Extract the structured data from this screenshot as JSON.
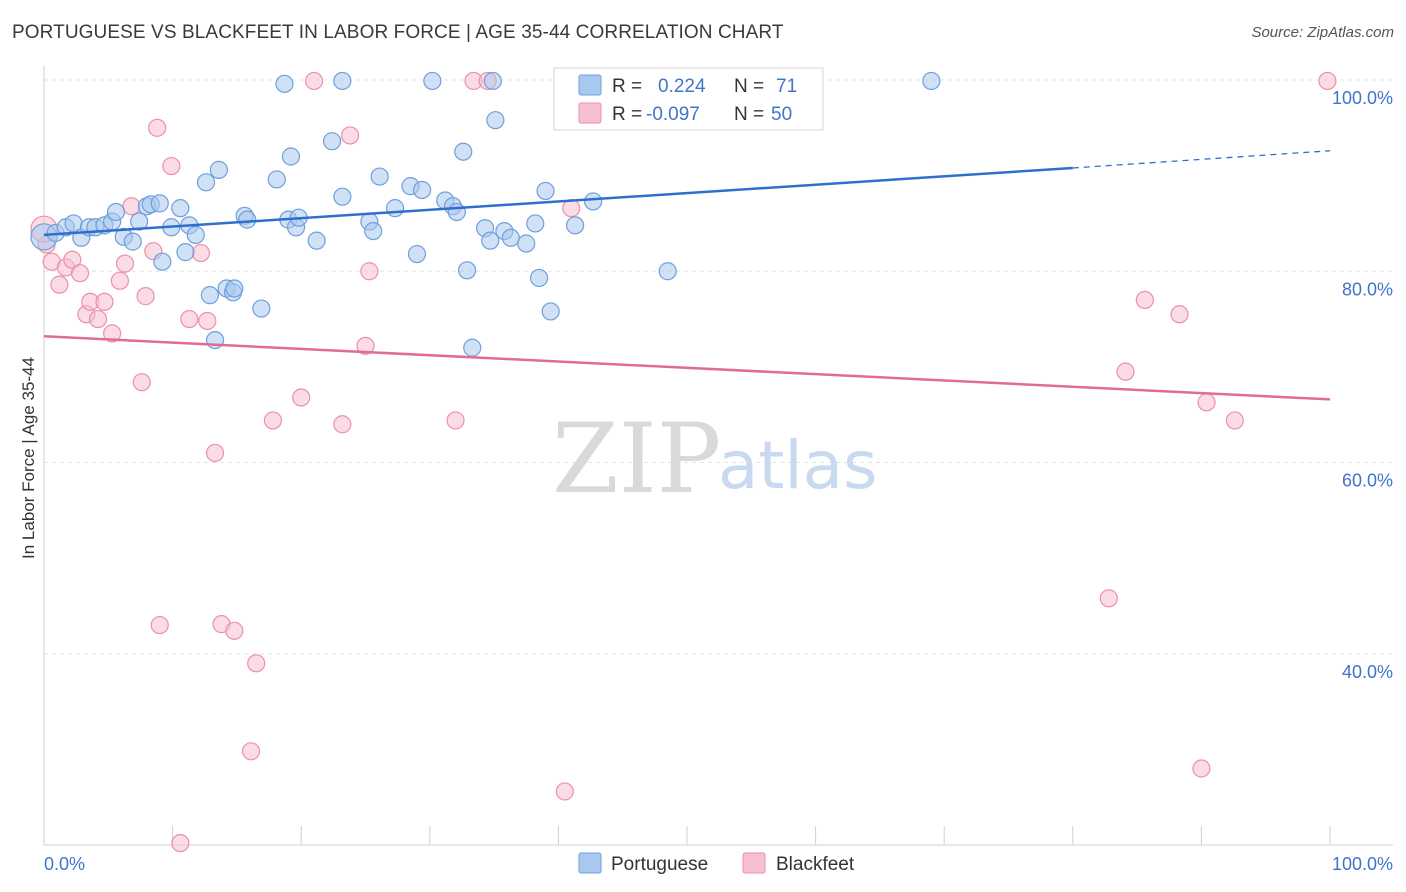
{
  "title": "PORTUGUESE VS BLACKFEET IN LABOR FORCE | AGE 35-44 CORRELATION CHART",
  "source": "Source: ZipAtlas.com",
  "watermark": {
    "zip": "ZIP",
    "atlas": "atlas"
  },
  "colors": {
    "portuguese_fill": "#a9c8ef",
    "portuguese_stroke": "#6f9fdc",
    "portuguese_line": "#2f6fcc",
    "blackfeet_fill": "#f7bfd0",
    "blackfeet_stroke": "#eb8fae",
    "blackfeet_line": "#e06c96",
    "grid": "#e3e3e3",
    "axis_text": "#3f74c9"
  },
  "legend": {
    "row1": {
      "r_label": "R =",
      "r_value": "0.224",
      "n_label": "N =",
      "n_value": "71"
    },
    "row2": {
      "r_label": "R =",
      "r_value": "-0.097",
      "n_label": "N =",
      "n_value": "50"
    }
  },
  "chart_data": {
    "type": "scatter",
    "title": "PORTUGUESE VS BLACKFEET IN LABOR FORCE | AGE 35-44 CORRELATION CHART",
    "xlabel": "",
    "ylabel": "In Labor Force | Age 35-44",
    "xlim": [
      0,
      100
    ],
    "ylim": [
      20,
      100
    ],
    "x_tick_labels": [
      "0.0%",
      "100.0%"
    ],
    "y_ticks": [
      40,
      60,
      80,
      100
    ],
    "y_tick_labels": [
      "40.0%",
      "60.0%",
      "80.0%",
      "100.0%"
    ],
    "grid": true,
    "legend_position": "bottom-center",
    "series": [
      {
        "name": "Portuguese",
        "r": 0.224,
        "n": 71,
        "trend": {
          "x0": 0,
          "y0": 83.8,
          "x1": 80,
          "y1": 90.8,
          "dashed_to_x": 100,
          "dashed_to_y": 92.6
        },
        "points": [
          [
            0.0,
            83.6
          ],
          [
            0.9,
            84.0
          ],
          [
            1.7,
            84.6
          ],
          [
            2.3,
            85.0
          ],
          [
            2.9,
            83.5
          ],
          [
            3.5,
            84.6
          ],
          [
            4.0,
            84.6
          ],
          [
            4.7,
            84.8
          ],
          [
            5.3,
            85.2
          ],
          [
            5.6,
            86.2
          ],
          [
            6.2,
            83.6
          ],
          [
            6.9,
            83.1
          ],
          [
            7.4,
            85.2
          ],
          [
            8.0,
            86.8
          ],
          [
            8.3,
            87.0
          ],
          [
            9.0,
            87.1
          ],
          [
            9.2,
            81.0
          ],
          [
            9.9,
            84.6
          ],
          [
            10.6,
            86.6
          ],
          [
            11.0,
            82.0
          ],
          [
            11.3,
            84.8
          ],
          [
            11.8,
            83.8
          ],
          [
            12.6,
            89.3
          ],
          [
            12.9,
            77.5
          ],
          [
            13.3,
            72.8
          ],
          [
            13.6,
            90.6
          ],
          [
            14.2,
            78.2
          ],
          [
            14.7,
            77.8
          ],
          [
            14.8,
            78.2
          ],
          [
            15.6,
            85.8
          ],
          [
            15.8,
            85.4
          ],
          [
            16.9,
            76.1
          ],
          [
            18.1,
            89.6
          ],
          [
            18.7,
            99.6
          ],
          [
            19.0,
            85.4
          ],
          [
            19.2,
            92.0
          ],
          [
            19.6,
            84.6
          ],
          [
            19.8,
            85.6
          ],
          [
            21.2,
            83.2
          ],
          [
            22.4,
            93.6
          ],
          [
            23.2,
            87.8
          ],
          [
            23.2,
            99.9
          ],
          [
            25.3,
            85.2
          ],
          [
            25.6,
            84.2
          ],
          [
            26.1,
            89.9
          ],
          [
            27.3,
            86.6
          ],
          [
            28.5,
            88.9
          ],
          [
            29.0,
            81.8
          ],
          [
            29.4,
            88.5
          ],
          [
            31.2,
            87.4
          ],
          [
            31.8,
            86.8
          ],
          [
            32.1,
            86.2
          ],
          [
            32.6,
            92.5
          ],
          [
            32.9,
            80.1
          ],
          [
            33.3,
            72.0
          ],
          [
            34.3,
            84.5
          ],
          [
            34.7,
            83.2
          ],
          [
            35.1,
            95.8
          ],
          [
            35.8,
            84.2
          ],
          [
            36.3,
            83.5
          ],
          [
            37.5,
            82.9
          ],
          [
            38.2,
            85.0
          ],
          [
            38.5,
            79.3
          ],
          [
            39.0,
            88.4
          ],
          [
            39.4,
            75.8
          ],
          [
            41.3,
            84.8
          ],
          [
            42.7,
            87.3
          ],
          [
            48.5,
            80.0
          ],
          [
            30.2,
            99.9
          ],
          [
            34.9,
            99.9
          ],
          [
            69.0,
            99.9
          ]
        ]
      },
      {
        "name": "Blackfeet",
        "r": -0.097,
        "n": 50,
        "trend": {
          "x0": 0,
          "y0": 73.2,
          "x1": 100,
          "y1": 66.6
        },
        "points": [
          [
            0.2,
            82.8
          ],
          [
            0.6,
            81.0
          ],
          [
            1.2,
            78.6
          ],
          [
            1.7,
            80.4
          ],
          [
            2.2,
            81.2
          ],
          [
            2.8,
            79.8
          ],
          [
            3.3,
            75.5
          ],
          [
            3.6,
            76.8
          ],
          [
            4.2,
            75.0
          ],
          [
            4.7,
            76.8
          ],
          [
            5.3,
            73.5
          ],
          [
            5.9,
            79.0
          ],
          [
            6.3,
            80.8
          ],
          [
            6.8,
            86.8
          ],
          [
            7.6,
            68.4
          ],
          [
            7.9,
            77.4
          ],
          [
            8.5,
            82.1
          ],
          [
            8.8,
            95.0
          ],
          [
            9.0,
            43.0
          ],
          [
            9.9,
            91.0
          ],
          [
            10.6,
            20.2
          ],
          [
            11.3,
            75.0
          ],
          [
            12.2,
            81.9
          ],
          [
            12.7,
            74.8
          ],
          [
            13.3,
            61.0
          ],
          [
            13.8,
            43.1
          ],
          [
            14.8,
            42.4
          ],
          [
            16.1,
            29.8
          ],
          [
            16.5,
            39.0
          ],
          [
            17.8,
            64.4
          ],
          [
            20.0,
            66.8
          ],
          [
            21.0,
            99.9
          ],
          [
            23.2,
            64.0
          ],
          [
            23.8,
            94.2
          ],
          [
            25.0,
            72.2
          ],
          [
            25.3,
            80.0
          ],
          [
            32.0,
            64.4
          ],
          [
            33.4,
            99.9
          ],
          [
            34.5,
            99.9
          ],
          [
            40.5,
            25.6
          ],
          [
            41.0,
            86.6
          ],
          [
            82.8,
            45.8
          ],
          [
            84.1,
            69.5
          ],
          [
            85.6,
            77.0
          ],
          [
            88.3,
            75.5
          ],
          [
            90.0,
            28.0
          ],
          [
            90.4,
            66.3
          ],
          [
            92.6,
            64.4
          ],
          [
            99.8,
            99.9
          ],
          [
            0.0,
            84.4
          ]
        ]
      }
    ]
  }
}
